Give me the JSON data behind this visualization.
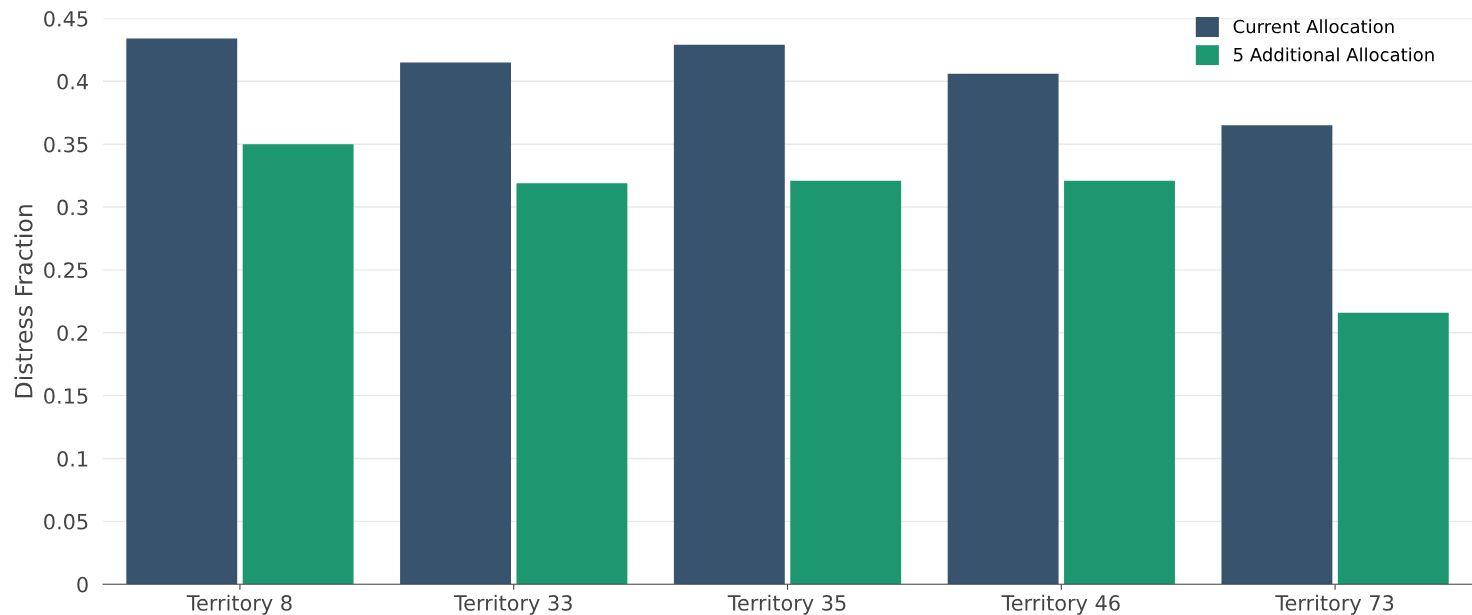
{
  "chart_data": {
    "type": "bar",
    "ylabel": "Distress Fraction",
    "categories": [
      "Territory 8",
      "Territory 33",
      "Territory 35",
      "Territory 46",
      "Territory 73"
    ],
    "series": [
      {
        "name": "Current Allocation",
        "color": "#37536d",
        "values": [
          0.434,
          0.415,
          0.429,
          0.406,
          0.365
        ]
      },
      {
        "name": "5 Additional Allocation",
        "color": "#1c9770",
        "values": [
          0.35,
          0.319,
          0.321,
          0.321,
          0.216
        ]
      }
    ],
    "ylim": [
      0,
      0.45
    ],
    "yticks": [
      0,
      0.05,
      0.1,
      0.15,
      0.2,
      0.25,
      0.3,
      0.35,
      0.4,
      0.45
    ],
    "grid": "y",
    "legend": "top right"
  }
}
